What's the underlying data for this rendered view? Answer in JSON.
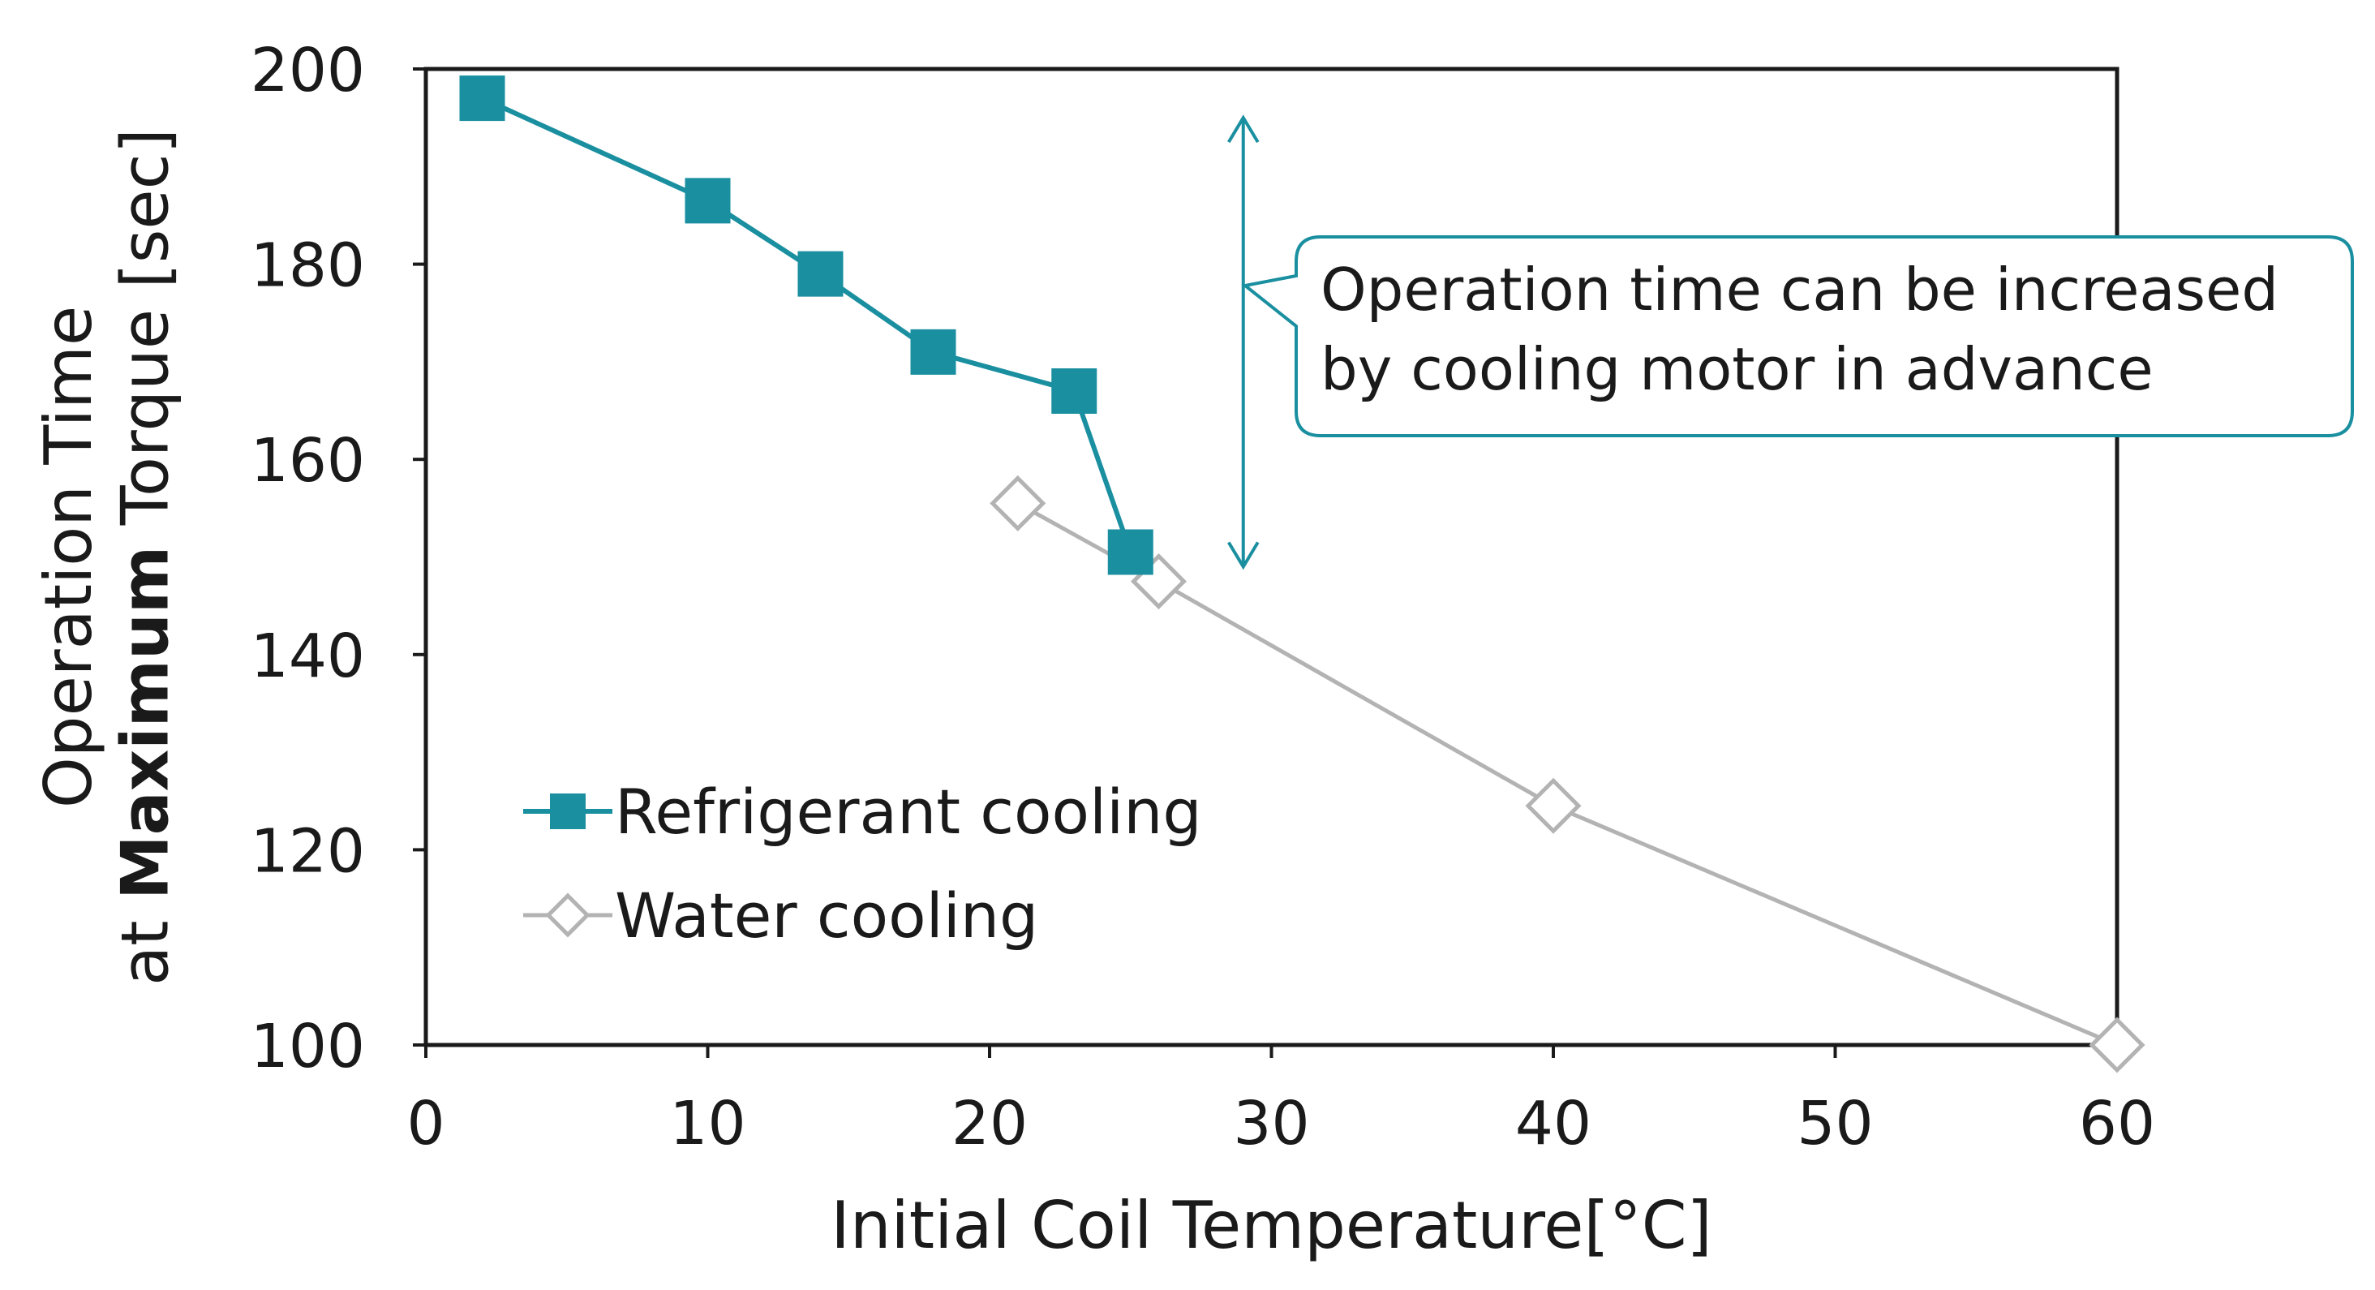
{
  "chart_data": {
    "type": "line",
    "title": "",
    "xlabel": "Initial Coil Temperature[°C]",
    "ylabel": {
      "line1": "Operation Time",
      "line2_prefix": "at ",
      "line2_bold": "Maximum",
      "line2_suffix": " Torque [sec]"
    },
    "xlim": [
      0,
      60
    ],
    "ylim": [
      100,
      200
    ],
    "xticks": [
      0,
      10,
      20,
      30,
      40,
      50,
      60
    ],
    "yticks": [
      100,
      120,
      140,
      160,
      180,
      200
    ],
    "grid": false,
    "legend_position": "lower-left",
    "series": [
      {
        "name": "Refrigerant cooling",
        "color": "#1a8fa0",
        "marker": "filled-square",
        "x": [
          2,
          10,
          14,
          18,
          23,
          25
        ],
        "y": [
          197,
          186.5,
          179,
          171,
          167,
          150.5
        ]
      },
      {
        "name": "Water cooling",
        "color": "#b3b3b3",
        "marker": "hollow-diamond",
        "x": [
          21,
          26,
          40,
          60
        ],
        "y": [
          155.5,
          147.5,
          124.5,
          100
        ]
      }
    ],
    "annotation": {
      "lines": [
        "Operation time can be increased",
        "by cooling motor in advance"
      ],
      "arrow_x": 29,
      "arrow_y_range": [
        149,
        195
      ],
      "color": "#1a8fa0"
    }
  }
}
